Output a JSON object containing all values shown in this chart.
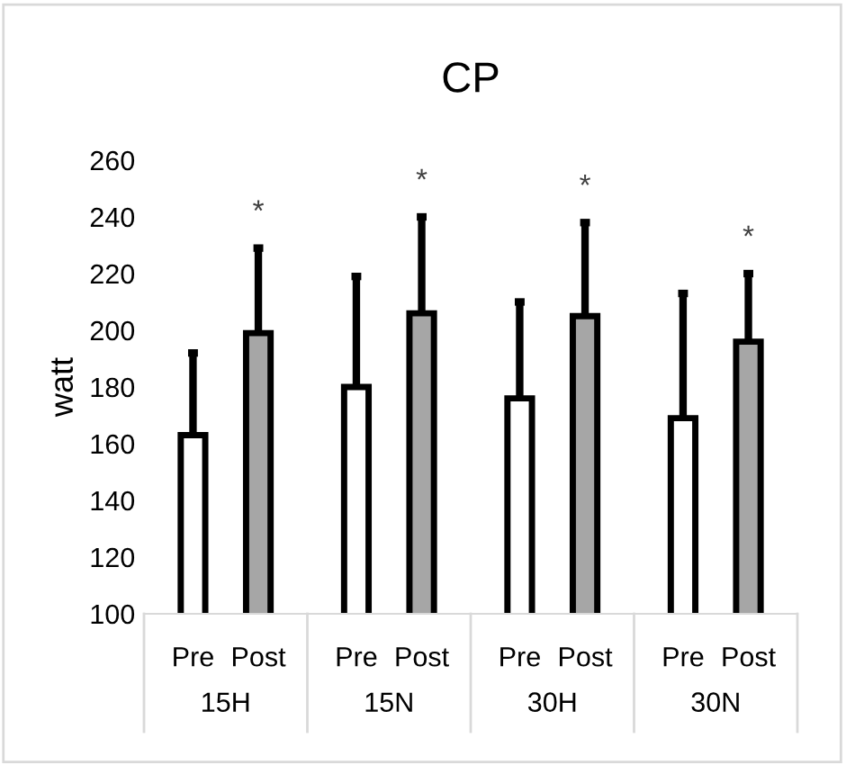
{
  "chart_data": {
    "type": "bar",
    "title": "CP",
    "ylabel": "watt",
    "categories": [
      "15H",
      "15N",
      "30H",
      "30N"
    ],
    "series": [
      {
        "name": "Pre",
        "color": "#ffffff",
        "values": [
          163,
          180,
          176,
          169
        ],
        "errors": [
          [
            163,
            192
          ],
          [
            180,
            219
          ],
          [
            176,
            210
          ],
          [
            169,
            213
          ]
        ]
      },
      {
        "name": "Post",
        "color": "#a6a6a6",
        "values": [
          199,
          206,
          205,
          196
        ],
        "errors": [
          [
            199,
            229
          ],
          [
            206,
            240
          ],
          [
            205,
            238
          ],
          [
            196,
            220
          ]
        ]
      }
    ],
    "ylim": [
      100,
      260
    ],
    "yticks": [
      100,
      120,
      140,
      160,
      180,
      200,
      220,
      240,
      260
    ],
    "annotations": [
      "*",
      "*",
      "*",
      "*"
    ],
    "grid": false,
    "legend": false
  }
}
